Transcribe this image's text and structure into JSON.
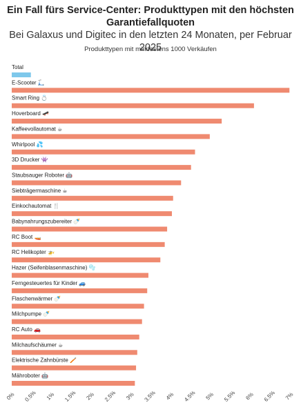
{
  "chart_data": {
    "type": "bar",
    "orientation": "horizontal",
    "title": "Ein Fall fürs Service-Center: Produkttypen mit den höchsten Garantiefallquoten",
    "subtitle": "Bei Galaxus und Digitec in den letzten 24 Monaten, per Februar 2025",
    "note": "Produkttypen mit mindestens 1000 Verkäufen",
    "xlim": [
      0,
      7
    ],
    "x_ticks": [
      "0%",
      "0.5%",
      "1%",
      "1.5%",
      "2%",
      "2.5%",
      "3%",
      "3.5%",
      "4%",
      "4.5%",
      "5%",
      "5.5%",
      "6%",
      "6.5%",
      "7%"
    ],
    "grid": false,
    "categories": [
      "Total",
      "E-Scooter 🛴",
      "Smart Ring 💍",
      "Hoverboard 🛹",
      "Kaffeevollautomat ☕",
      "Whirlpool 💦",
      "3D Drucker 👾",
      "Staubsauger Roboter 🤖",
      "Siebträgermaschine ☕",
      "Einkochautomat 🍴",
      "Babynahrungszubereiter 🍼",
      "RC Boot 🚤",
      "RC Helikopter 🚁",
      "Hazer (Seifenblasenmaschine) 🫧",
      "Ferngesteuertes für Kinder 🚙",
      "Flaschenwärmer 🍼",
      "Milchpumpe 🍼",
      "RC Auto 🚗",
      "Milchaufschäumer ☕",
      "Elektrische Zahnbürste 🪥",
      "Mähroboter 🤖"
    ],
    "values": [
      0.48,
      6.97,
      6.08,
      5.27,
      4.97,
      4.6,
      4.5,
      4.25,
      4.05,
      4.02,
      3.9,
      3.84,
      3.73,
      3.43,
      3.4,
      3.32,
      3.27,
      3.2,
      3.15,
      3.12,
      3.09
    ],
    "colors": {
      "total": "#7ec8eb",
      "bar": "#ef8a70"
    }
  }
}
